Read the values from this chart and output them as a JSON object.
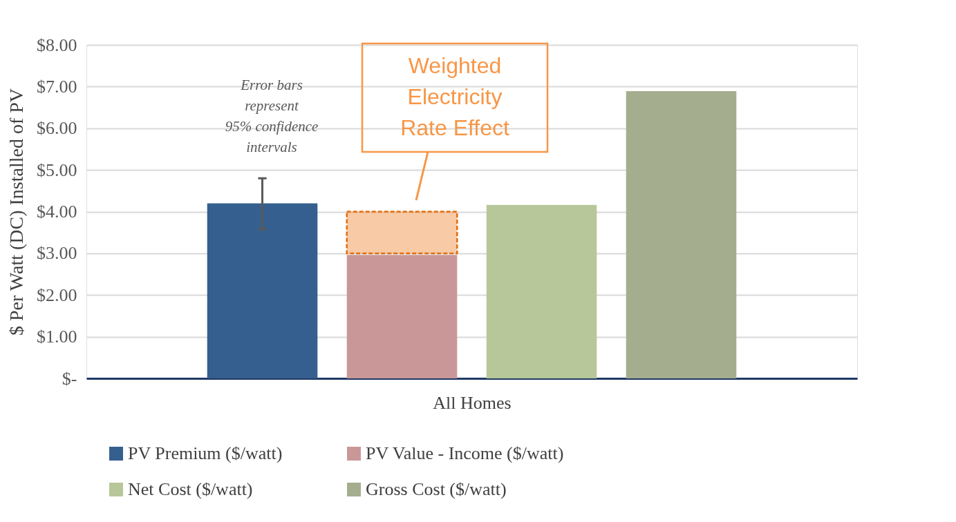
{
  "chart_data": {
    "type": "bar",
    "ylabel": "$ Per Watt (DC) Installed of PV",
    "xlabel": "All Homes",
    "categories": [
      null,
      null,
      null,
      null
    ],
    "ylim": [
      0,
      8
    ],
    "yticks": [
      {
        "value": 0,
        "label": "$-"
      },
      {
        "value": 1,
        "label": "$1.00"
      },
      {
        "value": 2,
        "label": "$2.00"
      },
      {
        "value": 3,
        "label": "$3.00"
      },
      {
        "value": 4,
        "label": "$4.00"
      },
      {
        "value": 5,
        "label": "$5.00"
      },
      {
        "value": 6,
        "label": "$6.00"
      },
      {
        "value": 7,
        "label": "$7.00"
      },
      {
        "value": 8,
        "label": "$8.00"
      }
    ],
    "grid": "y",
    "legend": "bottom",
    "series": [
      {
        "name": "PV Premium ($/watt)",
        "color": "#355f8f",
        "values": [
          4.2,
          null,
          null,
          null
        ],
        "errors": [
          [
            3.58,
            4.8
          ],
          null,
          null,
          null
        ]
      },
      {
        "name": "PV Value - Income ($/watt)",
        "color": "#c99797",
        "values": [
          null,
          2.96,
          null,
          null
        ]
      },
      {
        "name": "Net Cost ($/watt)",
        "color": "#b8c79a",
        "values": [
          null,
          null,
          4.16,
          null
        ]
      },
      {
        "name": "Gross Cost ($/watt)",
        "color": "#a4ae8e",
        "values": [
          null,
          null,
          null,
          6.89
        ]
      },
      {
        "color": "#f4a66a",
        "values": [
          null,
          1.0,
          null,
          null
        ],
        "base": [
          null,
          3.0,
          null,
          null
        ],
        "line_style": "dashed"
      }
    ],
    "annotations": [
      "Error bars\nrepresent\n95% confidence\nintervals",
      "Weighted\nElectricity\nRate Effect"
    ]
  }
}
